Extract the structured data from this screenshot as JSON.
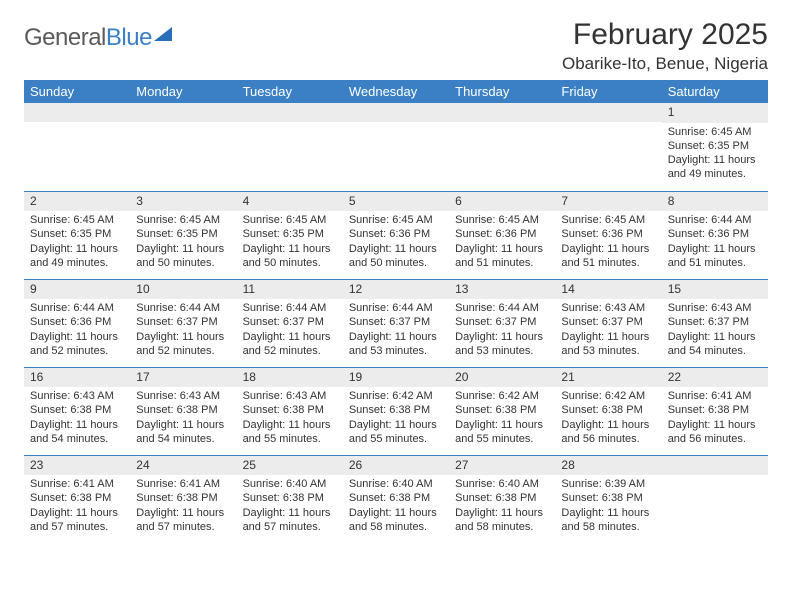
{
  "logo": {
    "text1": "General",
    "text2": "Blue"
  },
  "title": "February 2025",
  "location": "Obarike-Ito, Benue, Nigeria",
  "colors": {
    "header_bg": "#3b7fc4",
    "header_text": "#ffffff",
    "daynum_bg": "#ececec",
    "row_border": "#3b7fc4",
    "text": "#333333",
    "page_bg": "#ffffff"
  },
  "typography": {
    "title_fontsize": 30,
    "location_fontsize": 17,
    "weekday_fontsize": 13,
    "cell_fontsize": 11
  },
  "weekdays": [
    "Sunday",
    "Monday",
    "Tuesday",
    "Wednesday",
    "Thursday",
    "Friday",
    "Saturday"
  ],
  "weeks": [
    [
      null,
      null,
      null,
      null,
      null,
      null,
      {
        "n": "1",
        "sunrise": "Sunrise: 6:45 AM",
        "sunset": "Sunset: 6:35 PM",
        "daylight": "Daylight: 11 hours and 49 minutes."
      }
    ],
    [
      {
        "n": "2",
        "sunrise": "Sunrise: 6:45 AM",
        "sunset": "Sunset: 6:35 PM",
        "daylight": "Daylight: 11 hours and 49 minutes."
      },
      {
        "n": "3",
        "sunrise": "Sunrise: 6:45 AM",
        "sunset": "Sunset: 6:35 PM",
        "daylight": "Daylight: 11 hours and 50 minutes."
      },
      {
        "n": "4",
        "sunrise": "Sunrise: 6:45 AM",
        "sunset": "Sunset: 6:35 PM",
        "daylight": "Daylight: 11 hours and 50 minutes."
      },
      {
        "n": "5",
        "sunrise": "Sunrise: 6:45 AM",
        "sunset": "Sunset: 6:36 PM",
        "daylight": "Daylight: 11 hours and 50 minutes."
      },
      {
        "n": "6",
        "sunrise": "Sunrise: 6:45 AM",
        "sunset": "Sunset: 6:36 PM",
        "daylight": "Daylight: 11 hours and 51 minutes."
      },
      {
        "n": "7",
        "sunrise": "Sunrise: 6:45 AM",
        "sunset": "Sunset: 6:36 PM",
        "daylight": "Daylight: 11 hours and 51 minutes."
      },
      {
        "n": "8",
        "sunrise": "Sunrise: 6:44 AM",
        "sunset": "Sunset: 6:36 PM",
        "daylight": "Daylight: 11 hours and 51 minutes."
      }
    ],
    [
      {
        "n": "9",
        "sunrise": "Sunrise: 6:44 AM",
        "sunset": "Sunset: 6:36 PM",
        "daylight": "Daylight: 11 hours and 52 minutes."
      },
      {
        "n": "10",
        "sunrise": "Sunrise: 6:44 AM",
        "sunset": "Sunset: 6:37 PM",
        "daylight": "Daylight: 11 hours and 52 minutes."
      },
      {
        "n": "11",
        "sunrise": "Sunrise: 6:44 AM",
        "sunset": "Sunset: 6:37 PM",
        "daylight": "Daylight: 11 hours and 52 minutes."
      },
      {
        "n": "12",
        "sunrise": "Sunrise: 6:44 AM",
        "sunset": "Sunset: 6:37 PM",
        "daylight": "Daylight: 11 hours and 53 minutes."
      },
      {
        "n": "13",
        "sunrise": "Sunrise: 6:44 AM",
        "sunset": "Sunset: 6:37 PM",
        "daylight": "Daylight: 11 hours and 53 minutes."
      },
      {
        "n": "14",
        "sunrise": "Sunrise: 6:43 AM",
        "sunset": "Sunset: 6:37 PM",
        "daylight": "Daylight: 11 hours and 53 minutes."
      },
      {
        "n": "15",
        "sunrise": "Sunrise: 6:43 AM",
        "sunset": "Sunset: 6:37 PM",
        "daylight": "Daylight: 11 hours and 54 minutes."
      }
    ],
    [
      {
        "n": "16",
        "sunrise": "Sunrise: 6:43 AM",
        "sunset": "Sunset: 6:38 PM",
        "daylight": "Daylight: 11 hours and 54 minutes."
      },
      {
        "n": "17",
        "sunrise": "Sunrise: 6:43 AM",
        "sunset": "Sunset: 6:38 PM",
        "daylight": "Daylight: 11 hours and 54 minutes."
      },
      {
        "n": "18",
        "sunrise": "Sunrise: 6:43 AM",
        "sunset": "Sunset: 6:38 PM",
        "daylight": "Daylight: 11 hours and 55 minutes."
      },
      {
        "n": "19",
        "sunrise": "Sunrise: 6:42 AM",
        "sunset": "Sunset: 6:38 PM",
        "daylight": "Daylight: 11 hours and 55 minutes."
      },
      {
        "n": "20",
        "sunrise": "Sunrise: 6:42 AM",
        "sunset": "Sunset: 6:38 PM",
        "daylight": "Daylight: 11 hours and 55 minutes."
      },
      {
        "n": "21",
        "sunrise": "Sunrise: 6:42 AM",
        "sunset": "Sunset: 6:38 PM",
        "daylight": "Daylight: 11 hours and 56 minutes."
      },
      {
        "n": "22",
        "sunrise": "Sunrise: 6:41 AM",
        "sunset": "Sunset: 6:38 PM",
        "daylight": "Daylight: 11 hours and 56 minutes."
      }
    ],
    [
      {
        "n": "23",
        "sunrise": "Sunrise: 6:41 AM",
        "sunset": "Sunset: 6:38 PM",
        "daylight": "Daylight: 11 hours and 57 minutes."
      },
      {
        "n": "24",
        "sunrise": "Sunrise: 6:41 AM",
        "sunset": "Sunset: 6:38 PM",
        "daylight": "Daylight: 11 hours and 57 minutes."
      },
      {
        "n": "25",
        "sunrise": "Sunrise: 6:40 AM",
        "sunset": "Sunset: 6:38 PM",
        "daylight": "Daylight: 11 hours and 57 minutes."
      },
      {
        "n": "26",
        "sunrise": "Sunrise: 6:40 AM",
        "sunset": "Sunset: 6:38 PM",
        "daylight": "Daylight: 11 hours and 58 minutes."
      },
      {
        "n": "27",
        "sunrise": "Sunrise: 6:40 AM",
        "sunset": "Sunset: 6:38 PM",
        "daylight": "Daylight: 11 hours and 58 minutes."
      },
      {
        "n": "28",
        "sunrise": "Sunrise: 6:39 AM",
        "sunset": "Sunset: 6:38 PM",
        "daylight": "Daylight: 11 hours and 58 minutes."
      },
      null
    ]
  ]
}
